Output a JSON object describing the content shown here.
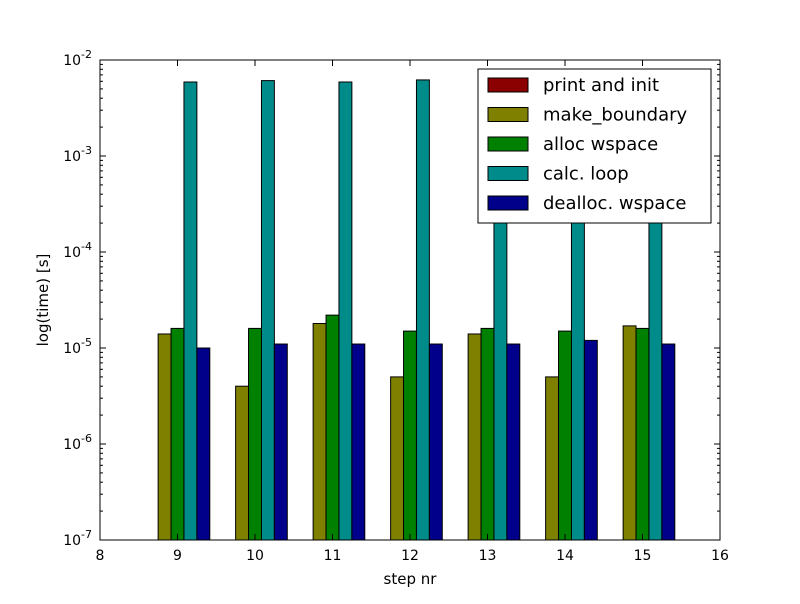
{
  "chart_data": {
    "type": "bar",
    "xlabel": "step nr",
    "ylabel": "log(time) [s]",
    "xlim": [
      8,
      16
    ],
    "ylim": [
      1e-07,
      0.01
    ],
    "yscale": "log",
    "legend_position": "top-right",
    "grid": false,
    "x_ticks": [
      "8",
      "9",
      "10",
      "11",
      "12",
      "13",
      "14",
      "15",
      "16"
    ],
    "y_ticks": [
      {
        "base": "10",
        "exp": "-7"
      },
      {
        "base": "10",
        "exp": "-6"
      },
      {
        "base": "10",
        "exp": "-5"
      },
      {
        "base": "10",
        "exp": "-4"
      },
      {
        "base": "10",
        "exp": "-3"
      },
      {
        "base": "10",
        "exp": "-2"
      }
    ],
    "x": [
      9,
      10,
      11,
      12,
      13,
      14,
      15
    ],
    "series": [
      {
        "name": "print and init",
        "color": "#8b0000",
        "values": [
          null,
          null,
          null,
          null,
          null,
          null,
          null
        ]
      },
      {
        "name": "make_boundary",
        "color": "#808000",
        "values": [
          1.4e-05,
          4e-06,
          1.8e-05,
          5e-06,
          1.4e-05,
          5e-06,
          1.7e-05
        ]
      },
      {
        "name": "alloc wspace",
        "color": "#008000",
        "values": [
          1.6e-05,
          1.6e-05,
          2.2e-05,
          1.5e-05,
          1.6e-05,
          1.5e-05,
          1.6e-05
        ]
      },
      {
        "name": "calc. loop",
        "color": "#008b8b",
        "values": [
          0.0059,
          0.0061,
          0.0059,
          0.0062,
          0.006,
          0.006,
          0.006
        ]
      },
      {
        "name": "dealloc. wspace",
        "color": "#00008b",
        "values": [
          1e-05,
          1.1e-05,
          1.1e-05,
          1.1e-05,
          1.1e-05,
          1.2e-05,
          1.1e-05
        ]
      }
    ]
  }
}
